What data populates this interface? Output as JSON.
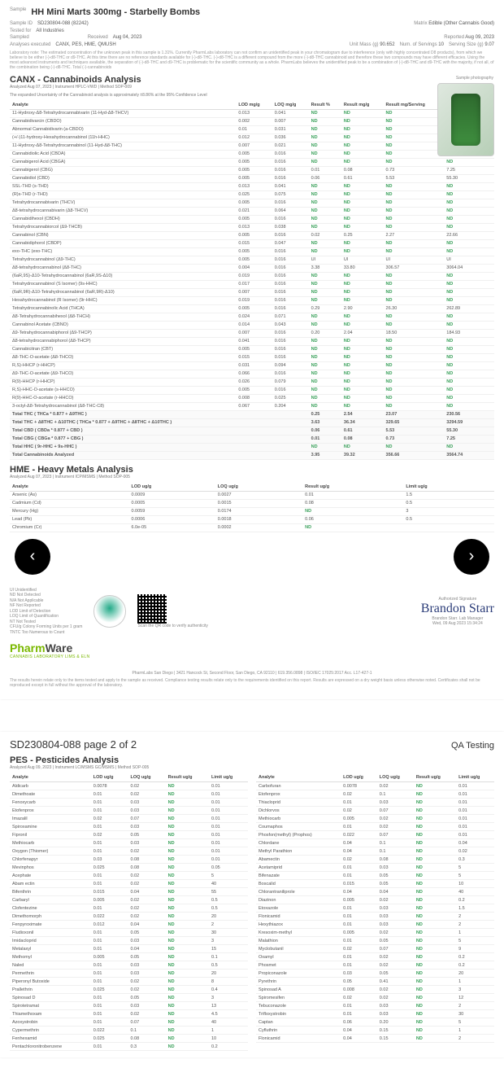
{
  "header": {
    "sample_label": "Sample",
    "sample_name": "HH Mini Marts 300mg - Starbelly Bombs",
    "sample_id_label": "Sample ID",
    "sample_id": "SD230804-088 (82242)",
    "matrix_label": "Matrix",
    "matrix": "Edible (Other Cannabis Good)",
    "tested_for_label": "Tested for",
    "tested_for": "All Industries",
    "sampled_label": "Sampled",
    "received_label": "Received",
    "received": "Aug 04, 2023",
    "reported_label": "Reported",
    "reported": "Aug 09, 2023",
    "analyses_label": "Analyses executed",
    "analyses": "CANX, PES, HME, QMUSH",
    "unit_mass_label": "Unit Mass (g)",
    "unit_mass": "90.652",
    "servings_label": "Num. of Servings",
    "servings": "10",
    "serving_size_label": "Serving Size (g)",
    "serving_size": "9.07",
    "lab_note": "Laboratory note: The estimated concentration of the unknown peak in this sample is 1.31%. Currently PharmLabs laboratory can not confirm an unidentified peak in your chromatogram due to interference (only with highly concentrated D8 products), from which we believe to be either (-)-d8-THC or d9-THC. At this time there are no reference standards available for (-)-d8-THC. (-)-d8-THC is a different compound from the more (-)-d8-THC cannabinoid and therefore these two compounds may have different efficacies. Using the most advanced instruments and techniques available, the separation of (-)-d8-THC and d9-THC is problematic for the scientific community as a whole. PharmLabs believes the unidentified peak to be a combination of (-)-d8-THC and d9-THC with the majority, if not all, of the combination being (-)-d8-THC. Total (-)-cannabinoids"
  },
  "canx": {
    "title": "CANX - Cannabinoids Analysis",
    "sub": "Analyzed Aug 07, 2023 | Instrument HPLC-VWD | Method SOP-009",
    "sub2": "The expanded Uncertainty of the Cannabinoid analysis is approximately ±8.86% at the 95% Confidence Level",
    "photo_label": "Sample photography",
    "columns": [
      "Analyte",
      "LOD mg/g",
      "LOQ mg/g",
      "Result %",
      "Result mg/g",
      "Result mg/Serving",
      "Result mg/Unit"
    ],
    "rows": [
      [
        "11-Hydroxy-Δ8-Tetrahydrocannabivarin (11-Hyd-Δ8-THCV)",
        "0.013",
        "0.041",
        "ND",
        "ND",
        "ND",
        "ND"
      ],
      [
        "Cannabidivarcin (CBDO)",
        "0.002",
        "0.007",
        "ND",
        "ND",
        "ND",
        "ND"
      ],
      [
        "Abnormal Cannabidivarin (a-CBDO)",
        "0.01",
        "0.031",
        "ND",
        "ND",
        "ND",
        "ND"
      ],
      [
        "(+/-)11-hydroxy-Hexahydrocannabinol (11h-HHC)",
        "0.012",
        "0.036",
        "ND",
        "ND",
        "ND",
        "ND"
      ],
      [
        "11-Hydroxy-Δ8-Tetrahydrocannabinol (11-Hyd-Δ8-THC)",
        "0.007",
        "0.021",
        "ND",
        "ND",
        "ND",
        "ND"
      ],
      [
        "Cannabidiolic Acid (CBDA)",
        "0.005",
        "0.016",
        "ND",
        "ND",
        "ND",
        "ND"
      ],
      [
        "Cannabigerol Acid (CBGA)",
        "0.005",
        "0.016",
        "ND",
        "ND",
        "ND",
        "ND"
      ],
      [
        "Cannabigerol (CBG)",
        "0.005",
        "0.016",
        "0.01",
        "0.08",
        "0.73",
        "7.25"
      ],
      [
        "Cannabidiol (CBD)",
        "0.005",
        "0.016",
        "0.06",
        "0.61",
        "5.53",
        "55.30"
      ],
      [
        "SSL-THD (s-THD)",
        "0.013",
        "0.041",
        "ND",
        "ND",
        "ND",
        "ND"
      ],
      [
        "(R)s-THD (r-THD)",
        "0.025",
        "0.075",
        "ND",
        "ND",
        "ND",
        "ND"
      ],
      [
        "Tetrahydrocannabivarin (THCV)",
        "0.005",
        "0.016",
        "ND",
        "ND",
        "ND",
        "ND"
      ],
      [
        "Δ8-tetrahydrocannabivarin (Δ8-THCV)",
        "0.021",
        "0.064",
        "ND",
        "ND",
        "ND",
        "ND"
      ],
      [
        "Cannabidihexol (CBDH)",
        "0.005",
        "0.016",
        "ND",
        "ND",
        "ND",
        "ND"
      ],
      [
        "Tetrahydrocannabiorcol (Δ9-THCB)",
        "0.013",
        "0.038",
        "ND",
        "ND",
        "ND",
        "ND"
      ],
      [
        "Cannabinol (CBN)",
        "0.005",
        "0.016",
        "0.02",
        "0.25",
        "2.27",
        "22.66"
      ],
      [
        "Cannabidiphorol (CBDP)",
        "0.015",
        "0.047",
        "ND",
        "ND",
        "ND",
        "ND"
      ],
      [
        "exo-THC (exo-THC)",
        "0.005",
        "0.016",
        "ND",
        "ND",
        "ND",
        "ND"
      ],
      [
        "Tetrahydrocannabinol (Δ9-THC)",
        "0.005",
        "0.016",
        "UI",
        "UI",
        "UI",
        "UI"
      ],
      [
        "Δ8-tetrahydrocannabinol (Δ8-THC)",
        "0.004",
        "0.016",
        "3.38",
        "33.80",
        "306.57",
        "3064.04"
      ],
      [
        "(6aR,9S)-Δ10-Tetrahydrocannabinol (6aR,9S-Δ10)",
        "0.019",
        "0.016",
        "ND",
        "ND",
        "ND",
        "ND"
      ],
      [
        "Tetrahydrocannabinol (S Isomer) (9s-HHC)",
        "0.017",
        "0.016",
        "ND",
        "ND",
        "ND",
        "ND"
      ],
      [
        "(6aR,9R)-Δ10-Tetrahydrocannabinol (6aR,9R)-Δ10)",
        "0.007",
        "0.016",
        "ND",
        "ND",
        "ND",
        "ND"
      ],
      [
        "Hexahydrocannabinol (R Isomer) (9r-HHC)",
        "0.019",
        "0.016",
        "ND",
        "ND",
        "ND",
        "ND"
      ],
      [
        "Tetrahydrocannabinolic Acid (THCA)",
        "0.005",
        "0.016",
        "0.29",
        "2.90",
        "26.30",
        "262.89"
      ],
      [
        "Δ8-Tetrahydrocannabihexol (Δ8-THCH)",
        "0.024",
        "0.071",
        "ND",
        "ND",
        "ND",
        "ND"
      ],
      [
        "Cannabinol Acetate (CBNO)",
        "0.014",
        "0.043",
        "ND",
        "ND",
        "ND",
        "ND"
      ],
      [
        "Δ9-Tetrahydrocannabiphorol (Δ9-THCP)",
        "0.007",
        "0.016",
        "0.20",
        "2.04",
        "18.50",
        "184.93"
      ],
      [
        "Δ8-tetrahydrocannabiphorol (Δ8-THCP)",
        "0.041",
        "0.016",
        "ND",
        "ND",
        "ND",
        "ND"
      ],
      [
        "Cannabicitran (CBT)",
        "0.005",
        "0.016",
        "ND",
        "ND",
        "ND",
        "ND"
      ],
      [
        "Δ8-THC-O-acetate (Δ8-THCO)",
        "0.015",
        "0.016",
        "ND",
        "ND",
        "ND",
        "ND"
      ],
      [
        "R,S)-HHCP (r-HHCP)",
        "0.031",
        "0.094",
        "ND",
        "ND",
        "ND",
        "ND"
      ],
      [
        "Δ9-THC-O-acetate (Δ9-THCO)",
        "0.066",
        "0.016",
        "ND",
        "ND",
        "ND",
        "ND"
      ],
      [
        "R(9)-HHCP (r-HHCP)",
        "0.026",
        "0.079",
        "ND",
        "ND",
        "ND",
        "ND"
      ],
      [
        "R,S)-HHC-O-acetate (s-HHCO)",
        "0.005",
        "0.016",
        "ND",
        "ND",
        "ND",
        "ND"
      ],
      [
        "R(9)-HHC-O-acetate (r-HHCO)",
        "0.008",
        "0.025",
        "ND",
        "ND",
        "ND",
        "ND"
      ],
      [
        "3-octyl-Δ8-Tetrahydrocannabinol (Δ8-THC-C8)",
        "0.067",
        "0.204",
        "ND",
        "ND",
        "ND",
        "ND"
      ]
    ],
    "summary": [
      [
        "Total THC ( THCa * 0.877 + Δ9THC )",
        "",
        "",
        "0.25",
        "2.54",
        "23.07",
        "230.56"
      ],
      [
        "Total THC + Δ8THC + Δ10THC ( THCa * 0.877 + Δ9THC + Δ8THC + Δ10THC )",
        "",
        "",
        "3.63",
        "36.34",
        "329.65",
        "3294.59"
      ],
      [
        "Total CBD ( CBDa * 0.877 + CBD )",
        "",
        "",
        "0.06",
        "0.61",
        "5.53",
        "55.30"
      ],
      [
        "Total CBG ( CBGa * 0.877 + CBG )",
        "",
        "",
        "0.01",
        "0.08",
        "0.73",
        "7.25"
      ],
      [
        "Total HHC ( 9r-HHC + 9s-HHC )",
        "",
        "",
        "ND",
        "ND",
        "ND",
        "ND"
      ],
      [
        "Total Cannabinoids Analyzed",
        "",
        "",
        "3.95",
        "39.32",
        "356.66",
        "3564.74"
      ]
    ]
  },
  "hme": {
    "title": "HME - Heavy Metals Analysis",
    "sub": "Analyzed Aug 07, 2023 | Instrument ICP/MSMS | Method SOP-005",
    "columns": [
      "Analyte",
      "LOD ug/g",
      "LOQ ug/g",
      "Result ug/g",
      "Limit ug/g"
    ],
    "rows": [
      [
        "Arsenic (As)",
        "0.0009",
        "0.0027",
        "0.01",
        "1.5"
      ],
      [
        "Cadmium (Cd)",
        "0.0005",
        "0.0015",
        "0.08",
        "0.5"
      ],
      [
        "Mercury (Hg)",
        "0.0059",
        "0.0174",
        "ND",
        "3"
      ],
      [
        "Lead (Pb)",
        "0.0006",
        "0.0018",
        "0.06",
        "0.5"
      ],
      [
        "Chromium (Cr)",
        "6.0e-05",
        "0.0002",
        "ND",
        ""
      ]
    ]
  },
  "legend": {
    "lines": [
      "UI Unidentified",
      "ND Not Detected",
      "N/A Not Applicable",
      "NF Not Reported",
      "LOD Limit of Detection",
      "LOQ Limit of Quantification",
      "NT Not Tested",
      "CFU/g Colony Forming Units per 1 gram",
      "TNTC Too Numerous to Count"
    ]
  },
  "signature": {
    "label": "Authorized Signature",
    "name": "Brandon Starr",
    "role": "Brandon Starr. Lab Manager",
    "date": "Wed, 09 Aug 2023 15:34:24"
  },
  "brand": {
    "name1": "Pharm",
    "name2": "Ware",
    "sub": "CANNABIS LABORATORY LIMS & ELN"
  },
  "footer_addr": "PharmLabs San Diego | 3421 Hancock St, Second Floor, San Diego, CA 92110 | 619.356.0898 | ISO/IEC 17025:2017 Acc. L17-427-1",
  "footer_fine": "The results herein relate only to the items tested and apply to the sample as received. Compliance testing results relate only to the requirements identified on this report. Results are expressed on a dry weight basis unless otherwise noted. Certificates shall not be reproduced except in full without the approval of the laboratory.",
  "qr_caption": "Scan the QR code to verify authenticity",
  "page2": {
    "header": "SD230804-088 page 2 of 2",
    "qa": "QA Testing"
  },
  "pes": {
    "title": "PES - Pesticides Analysis",
    "sub": "Analyzed Aug 09, 2023 | Instrument LC/MSMS GC/MSMS | Method SOP-005",
    "columns": [
      "Analyte",
      "LOD ug/g",
      "LOQ ug/g",
      "Result ug/g",
      "Limit ug/g"
    ],
    "left": [
      [
        "Aldicarb",
        "0.0078",
        "0.02",
        "ND",
        "0.01"
      ],
      [
        "Dimethoate",
        "0.01",
        "0.02",
        "ND",
        "0.01"
      ],
      [
        "Fenoxycarb",
        "0.01",
        "0.03",
        "ND",
        "0.01"
      ],
      [
        "Etofenprox",
        "0.01",
        "0.03",
        "ND",
        "0.01"
      ],
      [
        "Imazalil",
        "0.02",
        "0.07",
        "ND",
        "0.01"
      ],
      [
        "Spiroxamine",
        "0.01",
        "0.03",
        "ND",
        "0.01"
      ],
      [
        "Fipronil",
        "0.02",
        "0.05",
        "ND",
        "0.01"
      ],
      [
        "Methiocarb",
        "0.01",
        "0.03",
        "ND",
        "0.01"
      ],
      [
        "Oxygon (Thiomer)",
        "0.01",
        "0.02",
        "ND",
        "0.01"
      ],
      [
        "Chlorfenapyr",
        "0.03",
        "0.08",
        "ND",
        "0.01"
      ],
      [
        "Mevinphos",
        "0.025",
        "0.08",
        "ND",
        "0.05"
      ],
      [
        "Acephate",
        "0.01",
        "0.02",
        "ND",
        "5"
      ],
      [
        "Abam ectin",
        "0.01",
        "0.02",
        "ND",
        "40"
      ],
      [
        "Bifenthrin",
        "0.015",
        "0.04",
        "ND",
        "55"
      ],
      [
        "Carbaryl",
        "0.005",
        "0.02",
        "ND",
        "0.5"
      ],
      [
        "Clofentezine",
        "0.01",
        "0.02",
        "ND",
        "0.5"
      ],
      [
        "Dimethomorph",
        "0.022",
        "0.02",
        "ND",
        "20"
      ],
      [
        "Fenpyroximate",
        "0.012",
        "0.04",
        "ND",
        "2"
      ],
      [
        "Fludioxonil",
        "0.01",
        "0.05",
        "ND",
        "30"
      ],
      [
        "Imidacloprid",
        "0.01",
        "0.03",
        "ND",
        "3"
      ],
      [
        "Metalaxyl",
        "0.01",
        "0.04",
        "ND",
        "15"
      ],
      [
        "Methomyl",
        "0.005",
        "0.05",
        "ND",
        "0.1"
      ],
      [
        "Naled",
        "0.01",
        "0.03",
        "ND",
        "0.5"
      ],
      [
        "Permethrin",
        "0.01",
        "0.03",
        "ND",
        "20"
      ],
      [
        "Piperonyl Butoxide",
        "0.01",
        "0.02",
        "ND",
        "8"
      ],
      [
        "Prallethrin",
        "0.025",
        "0.02",
        "ND",
        "0.4"
      ],
      [
        "Spinosad D",
        "0.01",
        "0.05",
        "ND",
        "3"
      ],
      [
        "Spirotetramat",
        "0.01",
        "0.03",
        "ND",
        "13"
      ],
      [
        "Thiamethoxam",
        "0.01",
        "0.02",
        "ND",
        "4.5"
      ],
      [
        "Azoxystrobin",
        "0.01",
        "0.07",
        "ND",
        "40"
      ],
      [
        "Cypermethrin",
        "0.022",
        "0.1",
        "ND",
        "1"
      ],
      [
        "Fenhexamid",
        "0.025",
        "0.08",
        "ND",
        "10"
      ],
      [
        "Pentachloronitrobenzene",
        "0.01",
        "0.3",
        "ND",
        "0.2"
      ]
    ],
    "right": [
      [
        "Carbofuran",
        "0.0078",
        "0.02",
        "ND",
        "0.01"
      ],
      [
        "Etofenprox",
        "0.02",
        "0.1",
        "ND",
        "0.01"
      ],
      [
        "Thiacloprid",
        "0.01",
        "0.03",
        "ND",
        "0.01"
      ],
      [
        "Dichlorvos",
        "0.02",
        "0.07",
        "ND",
        "0.01"
      ],
      [
        "Methiocarb",
        "0.005",
        "0.02",
        "ND",
        "0.01"
      ],
      [
        "Coumaphos",
        "0.01",
        "0.02",
        "ND",
        "0.01"
      ],
      [
        "Phosfon(methyl) (Prophos)",
        "0.022",
        "0.07",
        "ND",
        "0.01"
      ],
      [
        "Chlordane",
        "0.04",
        "0.1",
        "ND",
        "0.04"
      ],
      [
        "Methyl Parathion",
        "0.04",
        "0.1",
        "ND",
        "0.02"
      ],
      [
        "Abamectin",
        "0.02",
        "0.08",
        "ND",
        "0.3"
      ],
      [
        "Acetamiprid",
        "0.01",
        "0.03",
        "ND",
        "5"
      ],
      [
        "Bifenazate",
        "0.01",
        "0.05",
        "ND",
        "5"
      ],
      [
        "Boscalid",
        "0.015",
        "0.05",
        "ND",
        "10"
      ],
      [
        "Chlorantraniliprole",
        "0.04",
        "0.04",
        "ND",
        "40"
      ],
      [
        "Diazinon",
        "0.005",
        "0.02",
        "ND",
        "0.2"
      ],
      [
        "Etoxazole",
        "0.01",
        "0.03",
        "ND",
        "1.5"
      ],
      [
        "Flonicamid",
        "0.01",
        "0.03",
        "ND",
        "2"
      ],
      [
        "Hexythiazox",
        "0.01",
        "0.03",
        "ND",
        "2"
      ],
      [
        "Kresoxim-methyl",
        "0.005",
        "0.02",
        "ND",
        "1"
      ],
      [
        "Malathion",
        "0.01",
        "0.05",
        "ND",
        "5"
      ],
      [
        "Myclobutanil",
        "0.02",
        "0.07",
        "ND",
        "9"
      ],
      [
        "Oxamyl",
        "0.01",
        "0.02",
        "ND",
        "0.2"
      ],
      [
        "Phosmet",
        "0.01",
        "0.02",
        "ND",
        "0.2"
      ],
      [
        "Propiconazole",
        "0.03",
        "0.05",
        "ND",
        "20"
      ],
      [
        "Pyrethrin",
        "0.05",
        "0.41",
        "ND",
        "1"
      ],
      [
        "Spinosad A",
        "0.008",
        "0.02",
        "ND",
        "3"
      ],
      [
        "Spiromesifen",
        "0.02",
        "0.02",
        "ND",
        "12"
      ],
      [
        "Tebuconazole",
        "0.01",
        "0.03",
        "ND",
        "2"
      ],
      [
        "Trifloxystrobin",
        "0.01",
        "0.03",
        "ND",
        "30"
      ],
      [
        "Captan",
        "0.06",
        "0.20",
        "ND",
        "5"
      ],
      [
        "Cyfluthrin",
        "0.04",
        "0.15",
        "ND",
        "1"
      ],
      [
        "Flonicamid",
        "0.04",
        "0.15",
        "ND",
        "2"
      ]
    ]
  }
}
